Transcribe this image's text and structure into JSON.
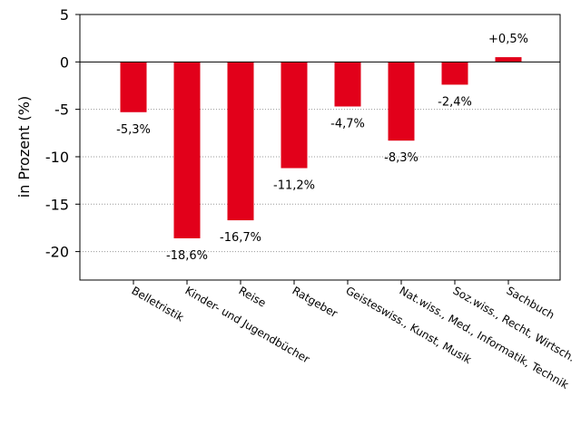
{
  "chart_data": {
    "type": "bar",
    "title": "",
    "xlabel": "",
    "ylabel": "in Prozent (%)",
    "categories": [
      "Belletristik",
      "Kinder- und Jugendbücher",
      "Reise",
      "Ratgeber",
      "Geisteswiss., Kunst, Musik",
      "Nat.wiss., Med., Informatik, Technik",
      "Soz.wiss., Recht, Wirtsch.",
      "Sachbuch"
    ],
    "values": [
      -5.3,
      -18.6,
      -16.7,
      -11.2,
      -4.7,
      -8.3,
      -2.4,
      0.5
    ],
    "data_labels": [
      "-5,3%",
      "-18,6%",
      "-16,7%",
      "-11,2%",
      "-4,7%",
      "-8,3%",
      "-2,4%",
      "+0,5%"
    ],
    "ylim": [
      -23,
      5
    ],
    "yticks": [
      5,
      0,
      -5,
      -10,
      -15,
      -20
    ],
    "ytick_labels": [
      "5",
      "0",
      "-5",
      "-10",
      "-15",
      "-20"
    ],
    "grid": "horizontal-dotted",
    "bar_color": "#e2001a"
  }
}
